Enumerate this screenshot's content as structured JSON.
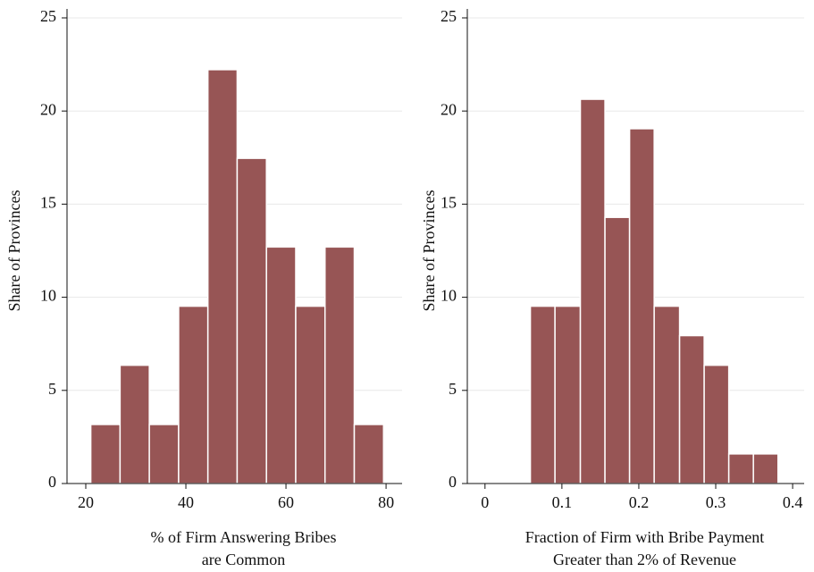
{
  "chart_data": [
    {
      "type": "histogram",
      "ylabel": "Share of Provinces",
      "xlabel": [
        "% of Firm Answering Bribes",
        "are Common"
      ],
      "bins": [
        21,
        26.85,
        32.7,
        38.55,
        44.4,
        50.25,
        56.1,
        61.95,
        67.8,
        73.65,
        79.5
      ],
      "values": [
        3.17,
        6.35,
        3.17,
        9.52,
        22.22,
        17.46,
        12.7,
        9.52,
        12.7,
        3.17
      ],
      "color": "#975555",
      "xlim": [
        16.25,
        83.2
      ],
      "xticks": [
        20,
        40,
        60,
        80
      ],
      "ylim": [
        0,
        25
      ],
      "yticks": [
        0,
        5,
        10,
        15,
        20,
        25
      ],
      "grid": true
    },
    {
      "type": "histogram",
      "ylabel": "Share of Provinces",
      "xlabel": [
        "Fraction of Firm with Bribe Payment",
        "Greater than 2% of Revenue"
      ],
      "bins": [
        0.059,
        0.091,
        0.124,
        0.156,
        0.188,
        0.22,
        0.253,
        0.285,
        0.317,
        0.349,
        0.381
      ],
      "values": [
        9.52,
        9.52,
        20.63,
        14.29,
        19.05,
        9.52,
        7.94,
        6.35,
        1.59,
        1.59
      ],
      "color": "#975555",
      "xlim": [
        -0.023,
        0.415
      ],
      "xticks": [
        0,
        0.1,
        0.2,
        0.3,
        0.4
      ],
      "ylim": [
        0,
        25
      ],
      "yticks": [
        0,
        5,
        10,
        15,
        20,
        25
      ],
      "grid": true
    }
  ]
}
